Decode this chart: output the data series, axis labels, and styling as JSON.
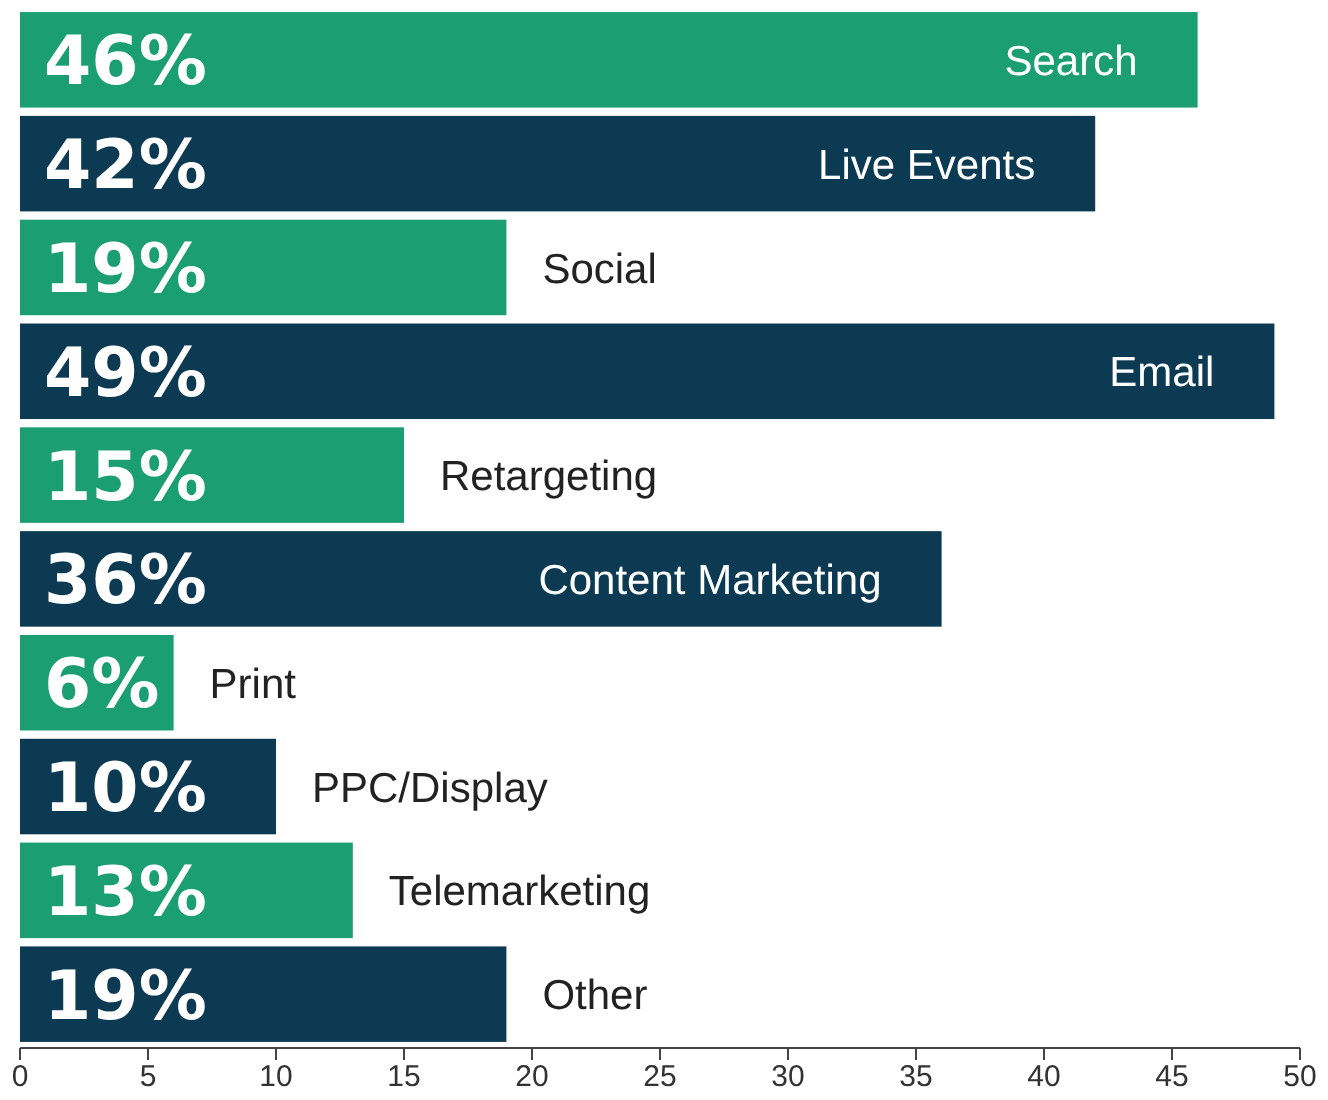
{
  "chart_data": {
    "type": "bar",
    "orientation": "horizontal",
    "categories": [
      "Search",
      "Live Events",
      "Social",
      "Email",
      "Retargeting",
      "Content Marketing",
      "Print",
      "PPC/Display",
      "Telemarketing",
      "Other"
    ],
    "values": [
      46,
      42,
      19,
      49,
      15,
      36,
      6,
      10,
      13,
      19
    ],
    "value_labels": [
      "46%",
      "42%",
      "19%",
      "49%",
      "15%",
      "36%",
      "6%",
      "10%",
      "13%",
      "19%"
    ],
    "colors": [
      "#1a9e72",
      "#0b3a52",
      "#1a9e72",
      "#0b3a52",
      "#1a9e72",
      "#0b3a52",
      "#1a9e72",
      "#0b3a52",
      "#1a9e72",
      "#0b3a52"
    ],
    "xlim": [
      0,
      50
    ],
    "xticks": [
      0,
      5,
      10,
      15,
      20,
      25,
      30,
      35,
      40,
      45,
      50
    ]
  }
}
